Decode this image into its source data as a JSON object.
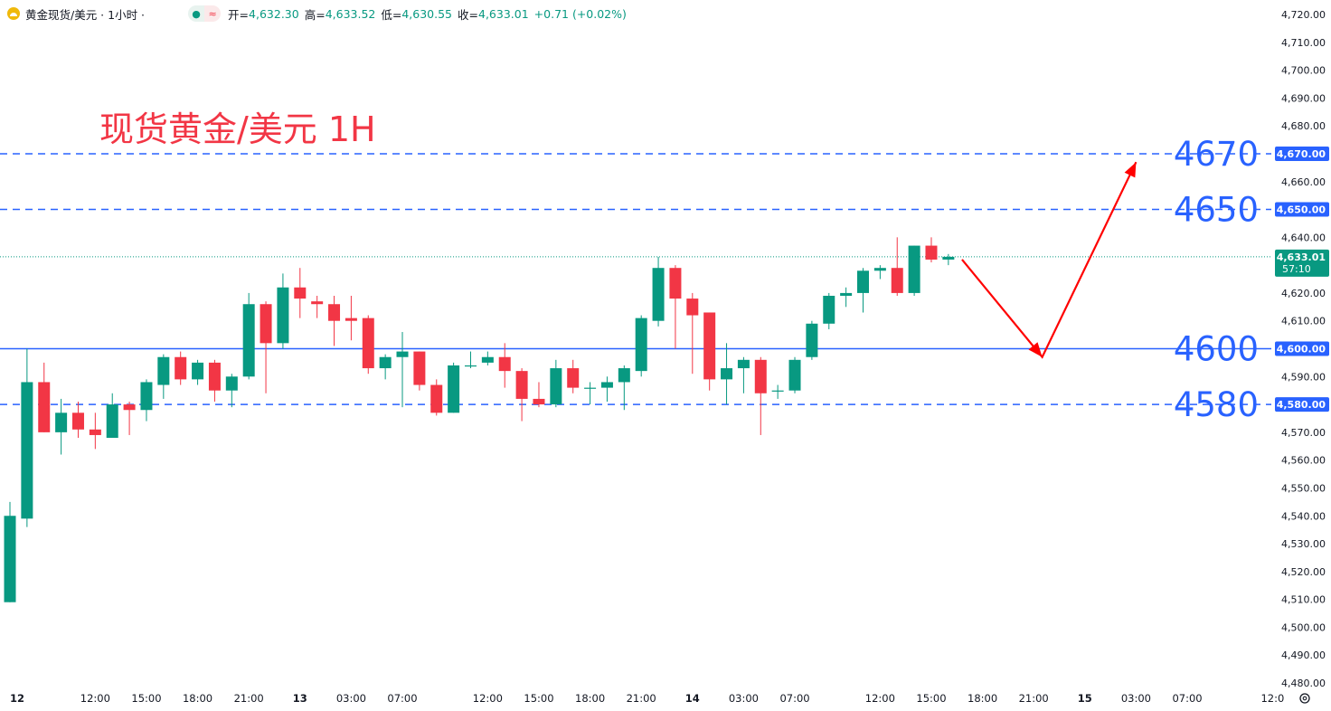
{
  "header": {
    "symbol": "黄金现货/美元 · 1小时 ·",
    "open_label": "开=",
    "open": "4,632.30",
    "high_label": "高=",
    "high": "4,633.52",
    "low_label": "低=",
    "low": "4,630.55",
    "close_label": "收=",
    "close": "4,633.01",
    "change": "+0.71 (+0.02%)",
    "icons": [
      "gold-symbol-icon",
      "dot-status-icon",
      "wave-status-icon",
      "settings-gear-icon"
    ]
  },
  "annotation_title": "现货黄金/美元 1H",
  "colors": {
    "up": "#089981",
    "down": "#f23645",
    "level_line": "#2962ff",
    "level_text": "#2962ff",
    "arrow": "#ff0000",
    "title": "#f23645",
    "price_tag": "#089981",
    "axis_text": "#131722"
  },
  "chart_data": {
    "type": "candlestick",
    "y_axis": {
      "min": 4480,
      "max": 4720,
      "ticks": [
        4720,
        4710,
        4700,
        4690,
        4680,
        4670,
        4660,
        4650,
        4640,
        4630,
        4620,
        4610,
        4600,
        4590,
        4580,
        4570,
        4560,
        4550,
        4540,
        4530,
        4520,
        4510,
        4500,
        4490,
        4480
      ],
      "tick_labels": [
        "4,720.00",
        "4,710.00",
        "4,700.00",
        "4,690.00",
        "4,680.00",
        "4,670.00",
        "4,660.00",
        "4,650.00",
        "4,640.00",
        "4,630.00",
        "4,620.00",
        "4,610.00",
        "4,600.00",
        "4,590.00",
        "4,580.00",
        "4,570.00",
        "4,560.00",
        "4,550.00",
        "4,540.00",
        "4,530.00",
        "4,520.00",
        "4,510.00",
        "4,500.00",
        "4,490.00",
        "4,480.00"
      ]
    },
    "x_axis": {
      "bar_index_range": [
        0,
        74
      ],
      "labels": [
        {
          "bar": 0,
          "text": "12"
        },
        {
          "bar": 5,
          "text": "12:00"
        },
        {
          "bar": 8,
          "text": "15:00"
        },
        {
          "bar": 11,
          "text": "18:00"
        },
        {
          "bar": 14,
          "text": "21:00"
        },
        {
          "bar": 17,
          "text": "13"
        },
        {
          "bar": 20,
          "text": "03:00"
        },
        {
          "bar": 23,
          "text": "07:00"
        },
        {
          "bar": 28,
          "text": "12:00"
        },
        {
          "bar": 31,
          "text": "15:00"
        },
        {
          "bar": 34,
          "text": "18:00"
        },
        {
          "bar": 37,
          "text": "21:00"
        },
        {
          "bar": 40,
          "text": "14"
        },
        {
          "bar": 43,
          "text": "03:00"
        },
        {
          "bar": 46,
          "text": "07:00"
        },
        {
          "bar": 51,
          "text": "12:00"
        },
        {
          "bar": 54,
          "text": "15:00"
        },
        {
          "bar": 57,
          "text": "18:00"
        },
        {
          "bar": 60,
          "text": "21:00"
        },
        {
          "bar": 63,
          "text": "15"
        },
        {
          "bar": 66,
          "text": "03:00"
        },
        {
          "bar": 69,
          "text": "07:00"
        },
        {
          "bar": 74,
          "text": "12:0"
        }
      ]
    },
    "candles": [
      {
        "o": 4509,
        "h": 4545,
        "l": 4509,
        "c": 4540
      },
      {
        "o": 4539,
        "h": 4600,
        "l": 4536,
        "c": 4588
      },
      {
        "o": 4588,
        "h": 4595,
        "l": 4570,
        "c": 4570
      },
      {
        "o": 4570,
        "h": 4582,
        "l": 4562,
        "c": 4577
      },
      {
        "o": 4577,
        "h": 4581,
        "l": 4568,
        "c": 4571
      },
      {
        "o": 4571,
        "h": 4577,
        "l": 4564,
        "c": 4569
      },
      {
        "o": 4568,
        "h": 4584,
        "l": 4568,
        "c": 4580
      },
      {
        "o": 4580,
        "h": 4581,
        "l": 4569,
        "c": 4578
      },
      {
        "o": 4578,
        "h": 4589,
        "l": 4574,
        "c": 4588
      },
      {
        "o": 4587,
        "h": 4598,
        "l": 4582,
        "c": 4597
      },
      {
        "o": 4597,
        "h": 4599,
        "l": 4587,
        "c": 4589
      },
      {
        "o": 4589,
        "h": 4596,
        "l": 4587,
        "c": 4595
      },
      {
        "o": 4595,
        "h": 4596,
        "l": 4581,
        "c": 4585
      },
      {
        "o": 4585,
        "h": 4591,
        "l": 4579,
        "c": 4590
      },
      {
        "o": 4590,
        "h": 4620,
        "l": 4589,
        "c": 4616
      },
      {
        "o": 4616,
        "h": 4617,
        "l": 4584,
        "c": 4602
      },
      {
        "o": 4602,
        "h": 4627,
        "l": 4600,
        "c": 4622
      },
      {
        "o": 4622,
        "h": 4629,
        "l": 4611,
        "c": 4618
      },
      {
        "o": 4617,
        "h": 4619,
        "l": 4611,
        "c": 4616
      },
      {
        "o": 4616,
        "h": 4619,
        "l": 4601,
        "c": 4610
      },
      {
        "o": 4611,
        "h": 4619,
        "l": 4603,
        "c": 4610
      },
      {
        "o": 4611,
        "h": 4612,
        "l": 4591,
        "c": 4593
      },
      {
        "o": 4593,
        "h": 4598,
        "l": 4589,
        "c": 4597
      },
      {
        "o": 4597,
        "h": 4606,
        "l": 4579,
        "c": 4599
      },
      {
        "o": 4599,
        "h": 4599,
        "l": 4585,
        "c": 4587
      },
      {
        "o": 4587,
        "h": 4589,
        "l": 4576,
        "c": 4577
      },
      {
        "o": 4577,
        "h": 4595,
        "l": 4577,
        "c": 4594
      },
      {
        "o": 4594,
        "h": 4599,
        "l": 4593,
        "c": 4594
      },
      {
        "o": 4595,
        "h": 4599,
        "l": 4594,
        "c": 4597
      },
      {
        "o": 4597,
        "h": 4602,
        "l": 4586,
        "c": 4592
      },
      {
        "o": 4592,
        "h": 4593,
        "l": 4574,
        "c": 4582
      },
      {
        "o": 4582,
        "h": 4588,
        "l": 4579,
        "c": 4580
      },
      {
        "o": 4580,
        "h": 4596,
        "l": 4579,
        "c": 4593
      },
      {
        "o": 4593,
        "h": 4596,
        "l": 4584,
        "c": 4586
      },
      {
        "o": 4586,
        "h": 4588,
        "l": 4580,
        "c": 4586
      },
      {
        "o": 4586,
        "h": 4590,
        "l": 4581,
        "c": 4588
      },
      {
        "o": 4588,
        "h": 4594,
        "l": 4578,
        "c": 4593
      },
      {
        "o": 4592,
        "h": 4612,
        "l": 4590,
        "c": 4611
      },
      {
        "o": 4610,
        "h": 4633,
        "l": 4608,
        "c": 4629
      },
      {
        "o": 4629,
        "h": 4630,
        "l": 4600,
        "c": 4618
      },
      {
        "o": 4618,
        "h": 4620,
        "l": 4591,
        "c": 4612
      },
      {
        "o": 4613,
        "h": 4613,
        "l": 4585,
        "c": 4589
      },
      {
        "o": 4589,
        "h": 4602,
        "l": 4580,
        "c": 4593
      },
      {
        "o": 4593,
        "h": 4597,
        "l": 4584,
        "c": 4596
      },
      {
        "o": 4596,
        "h": 4597,
        "l": 4569,
        "c": 4584
      },
      {
        "o": 4585,
        "h": 4587,
        "l": 4582,
        "c": 4585
      },
      {
        "o": 4585,
        "h": 4597,
        "l": 4584,
        "c": 4596
      },
      {
        "o": 4597,
        "h": 4610,
        "l": 4596,
        "c": 4609
      },
      {
        "o": 4609,
        "h": 4620,
        "l": 4607,
        "c": 4619
      },
      {
        "o": 4619,
        "h": 4622,
        "l": 4615,
        "c": 4620
      },
      {
        "o": 4620,
        "h": 4629,
        "l": 4613,
        "c": 4628
      },
      {
        "o": 4628,
        "h": 4630,
        "l": 4625,
        "c": 4629
      },
      {
        "o": 4629,
        "h": 4640,
        "l": 4619,
        "c": 4620
      },
      {
        "o": 4620,
        "h": 4637,
        "l": 4619,
        "c": 4637
      },
      {
        "o": 4637,
        "h": 4640,
        "l": 4631,
        "c": 4632
      },
      {
        "o": 4632,
        "h": 4634,
        "l": 4630,
        "c": 4633
      }
    ],
    "horizontal_levels": [
      {
        "value": 4670,
        "label": "4670",
        "tag": "4,670.00",
        "style": "dashed"
      },
      {
        "value": 4650,
        "label": "4650",
        "tag": "4,650.00",
        "style": "dashed"
      },
      {
        "value": 4600,
        "label": "4600",
        "tag": "4,600.00",
        "style": "solid"
      },
      {
        "value": 4580,
        "label": "4580",
        "tag": "4,580.00",
        "style": "dashed"
      }
    ],
    "last_price": {
      "value": 4633.01,
      "tag": "4,633.01",
      "countdown": "57:10"
    },
    "projection_arrow": [
      {
        "bar": 55.8,
        "y": 4632
      },
      {
        "bar": 60.5,
        "y": 4597
      },
      {
        "bar": 66,
        "y": 4667
      }
    ]
  }
}
